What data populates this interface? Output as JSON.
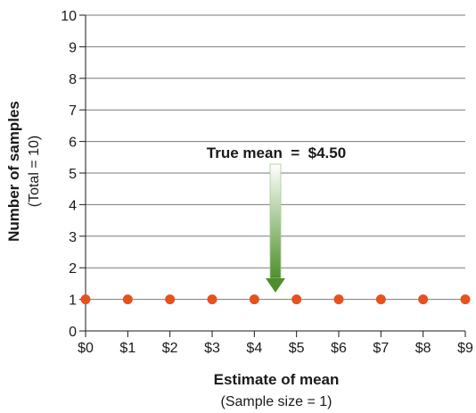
{
  "chart_data": {
    "type": "scatter",
    "x": [
      0,
      1,
      2,
      3,
      4,
      5,
      6,
      7,
      8,
      9
    ],
    "y": [
      1,
      1,
      1,
      1,
      1,
      1,
      1,
      1,
      1,
      1
    ],
    "x_tick_labels": [
      "$0",
      "$1",
      "$2",
      "$3",
      "$4",
      "$5",
      "$6",
      "$7",
      "$8",
      "$9"
    ],
    "y_tick_labels": [
      "0",
      "1",
      "2",
      "3",
      "4",
      "5",
      "6",
      "7",
      "8",
      "9",
      "10"
    ],
    "xlim": [
      0,
      9
    ],
    "ylim": [
      0,
      10
    ],
    "xlabel": "Estimate of mean",
    "xlabel_sub": "(Sample size = 1)",
    "ylabel": "Number of samples",
    "ylabel_sub": "(Total = 10)",
    "grid": true,
    "annotation": {
      "text": "True mean  =  $4.50",
      "x": 4.5
    },
    "colors": {
      "point": "#e8501e",
      "grid": "#7a7a7a",
      "arrow_top": "#ffffff",
      "arrow_bottom": "#4e8f2c"
    }
  }
}
